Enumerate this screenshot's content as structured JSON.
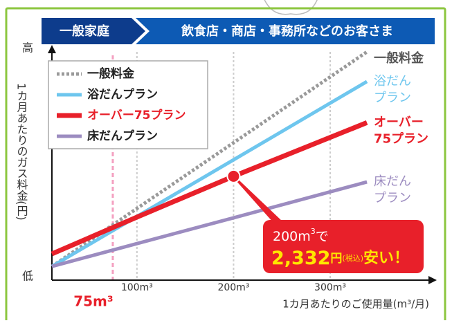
{
  "chart_data": {
    "type": "line",
    "tabs": [
      "一般家庭",
      "飲食店・商店・事務所などのお客さま"
    ],
    "x": [
      12,
      100,
      200,
      338
    ],
    "xlim": [
      12,
      406
    ],
    "ylim": [
      0,
      100
    ],
    "xticks": [
      {
        "value": 100,
        "label": "100m³"
      },
      {
        "value": 200,
        "label": "200m³"
      },
      {
        "value": 300,
        "label": "300m³"
      }
    ],
    "yticks": [
      {
        "value": 0,
        "label": "低"
      },
      {
        "value": 100,
        "label": "高"
      }
    ],
    "marker": {
      "value": 75,
      "label": "75m³"
    },
    "xlabel": "1カ月あたりのご使用量(m³/月)",
    "ylabel": "1カ月あたりのガス料金(円)",
    "legend": "upper-left",
    "series": [
      {
        "name": "一般料金",
        "color": "#9a9a9a",
        "dashed": true,
        "values": [
          6,
          31.4,
          60.2,
          100
        ],
        "end_label": [
          "一般料金"
        ]
      },
      {
        "name": "浴だんプラン",
        "color": "#6ec6ee",
        "dashed": false,
        "values": [
          6,
          27.9,
          52.7,
          87
        ],
        "end_label": [
          "浴だん",
          "プラン"
        ]
      },
      {
        "name": "オーバー75プラン",
        "color": "#e8202a",
        "dashed": false,
        "values": [
          11.5,
          27.6,
          45.5,
          69
        ],
        "end_label": [
          "オーバー",
          "75プラン"
        ]
      },
      {
        "name": "床だんプラン",
        "color": "#9c8cc0",
        "dashed": false,
        "values": [
          6,
          16,
          27.3,
          43
        ],
        "end_label": [
          "床だん",
          "プラン"
        ]
      }
    ],
    "callout": {
      "series": 2,
      "point": 2,
      "line1": [
        "200m",
        "3",
        "で"
      ],
      "amount": "2,332",
      "unit": "円",
      "tax": "(税込)",
      "tail": "安い！"
    }
  }
}
